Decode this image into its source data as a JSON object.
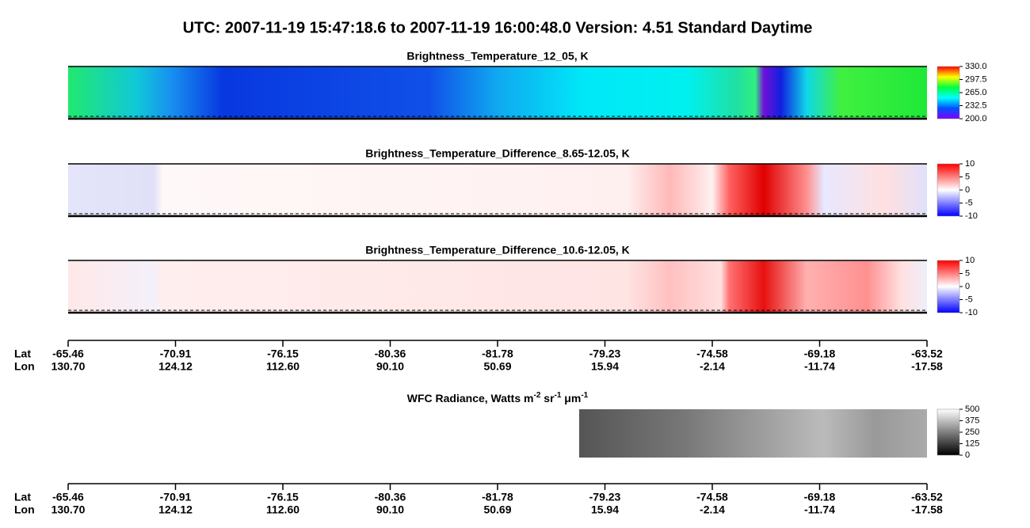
{
  "title": "UTC:  2007-11-19   15:47:18.6  to  2007-11-19   16:00:48.0    Version: 4.51  Standard Daytime",
  "panels": [
    {
      "title": "Brightness_Temperature_12_05, K",
      "colorbar": [
        "330.0",
        "297.5",
        "265.0",
        "232.5",
        "200.0"
      ]
    },
    {
      "title": "Brightness_Temperature_Difference_8.65-12.05, K",
      "colorbar": [
        "10",
        "5",
        "0",
        "-5",
        "-10"
      ]
    },
    {
      "title": "Brightness_Temperature_Difference_10.6-12.05, K",
      "colorbar": [
        "10",
        "5",
        "0",
        "-5",
        "-10"
      ]
    }
  ],
  "wfc": {
    "title": [
      "WFC Radiance, Watts m",
      "-2",
      " sr",
      "-1",
      " μm",
      "-1"
    ],
    "colorbar": [
      "500",
      "375",
      "250",
      "125",
      "0"
    ]
  },
  "axis": {
    "lat_label": "Lat",
    "lon_label": "Lon",
    "lat": [
      "-65.46",
      "-70.91",
      "-76.15",
      "-80.36",
      "-81.78",
      "-79.23",
      "-74.58",
      "-69.18",
      "-63.52"
    ],
    "lon": [
      "130.70",
      "124.12",
      "112.60",
      "90.10",
      "50.69",
      "15.94",
      "-2.14",
      "-11.74",
      "-17.58"
    ]
  }
}
